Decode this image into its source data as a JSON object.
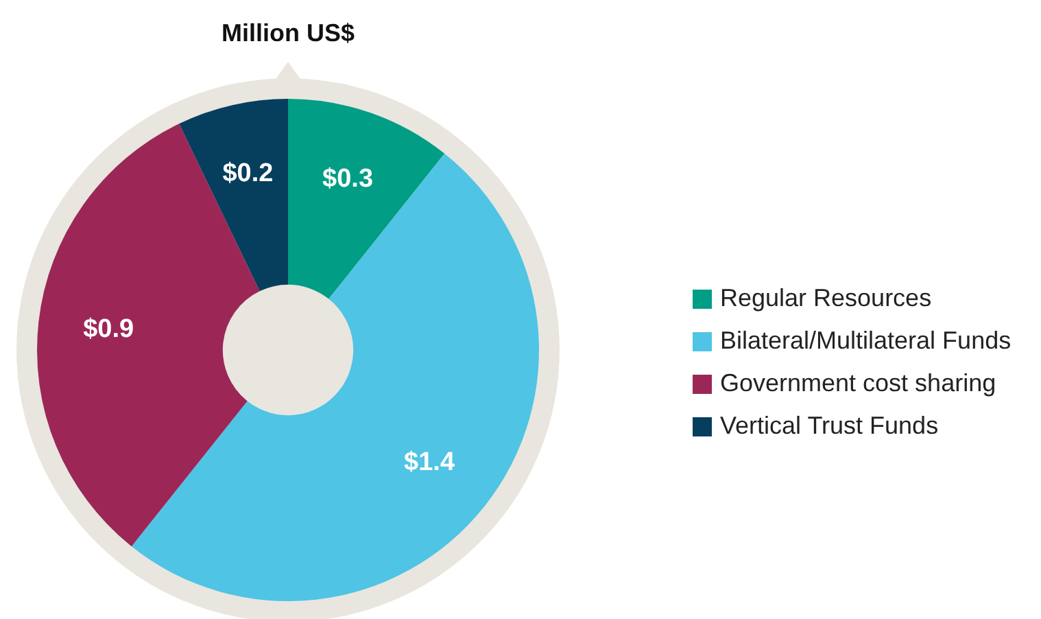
{
  "chart_data": {
    "type": "donut",
    "title": "Million US$",
    "categories": [
      "Regular Resources",
      "Bilateral/Multilateral Funds",
      "Government cost sharing",
      "Vertical Trust Funds"
    ],
    "values": [
      0.3,
      1.4,
      0.9,
      0.2
    ],
    "colors": [
      "#019d85",
      "#4fc4e4",
      "#9c2757",
      "#063e5e"
    ],
    "value_labels": [
      "$0.3",
      "$1.4",
      "$0.9",
      "$0.2"
    ],
    "legend": "right"
  }
}
